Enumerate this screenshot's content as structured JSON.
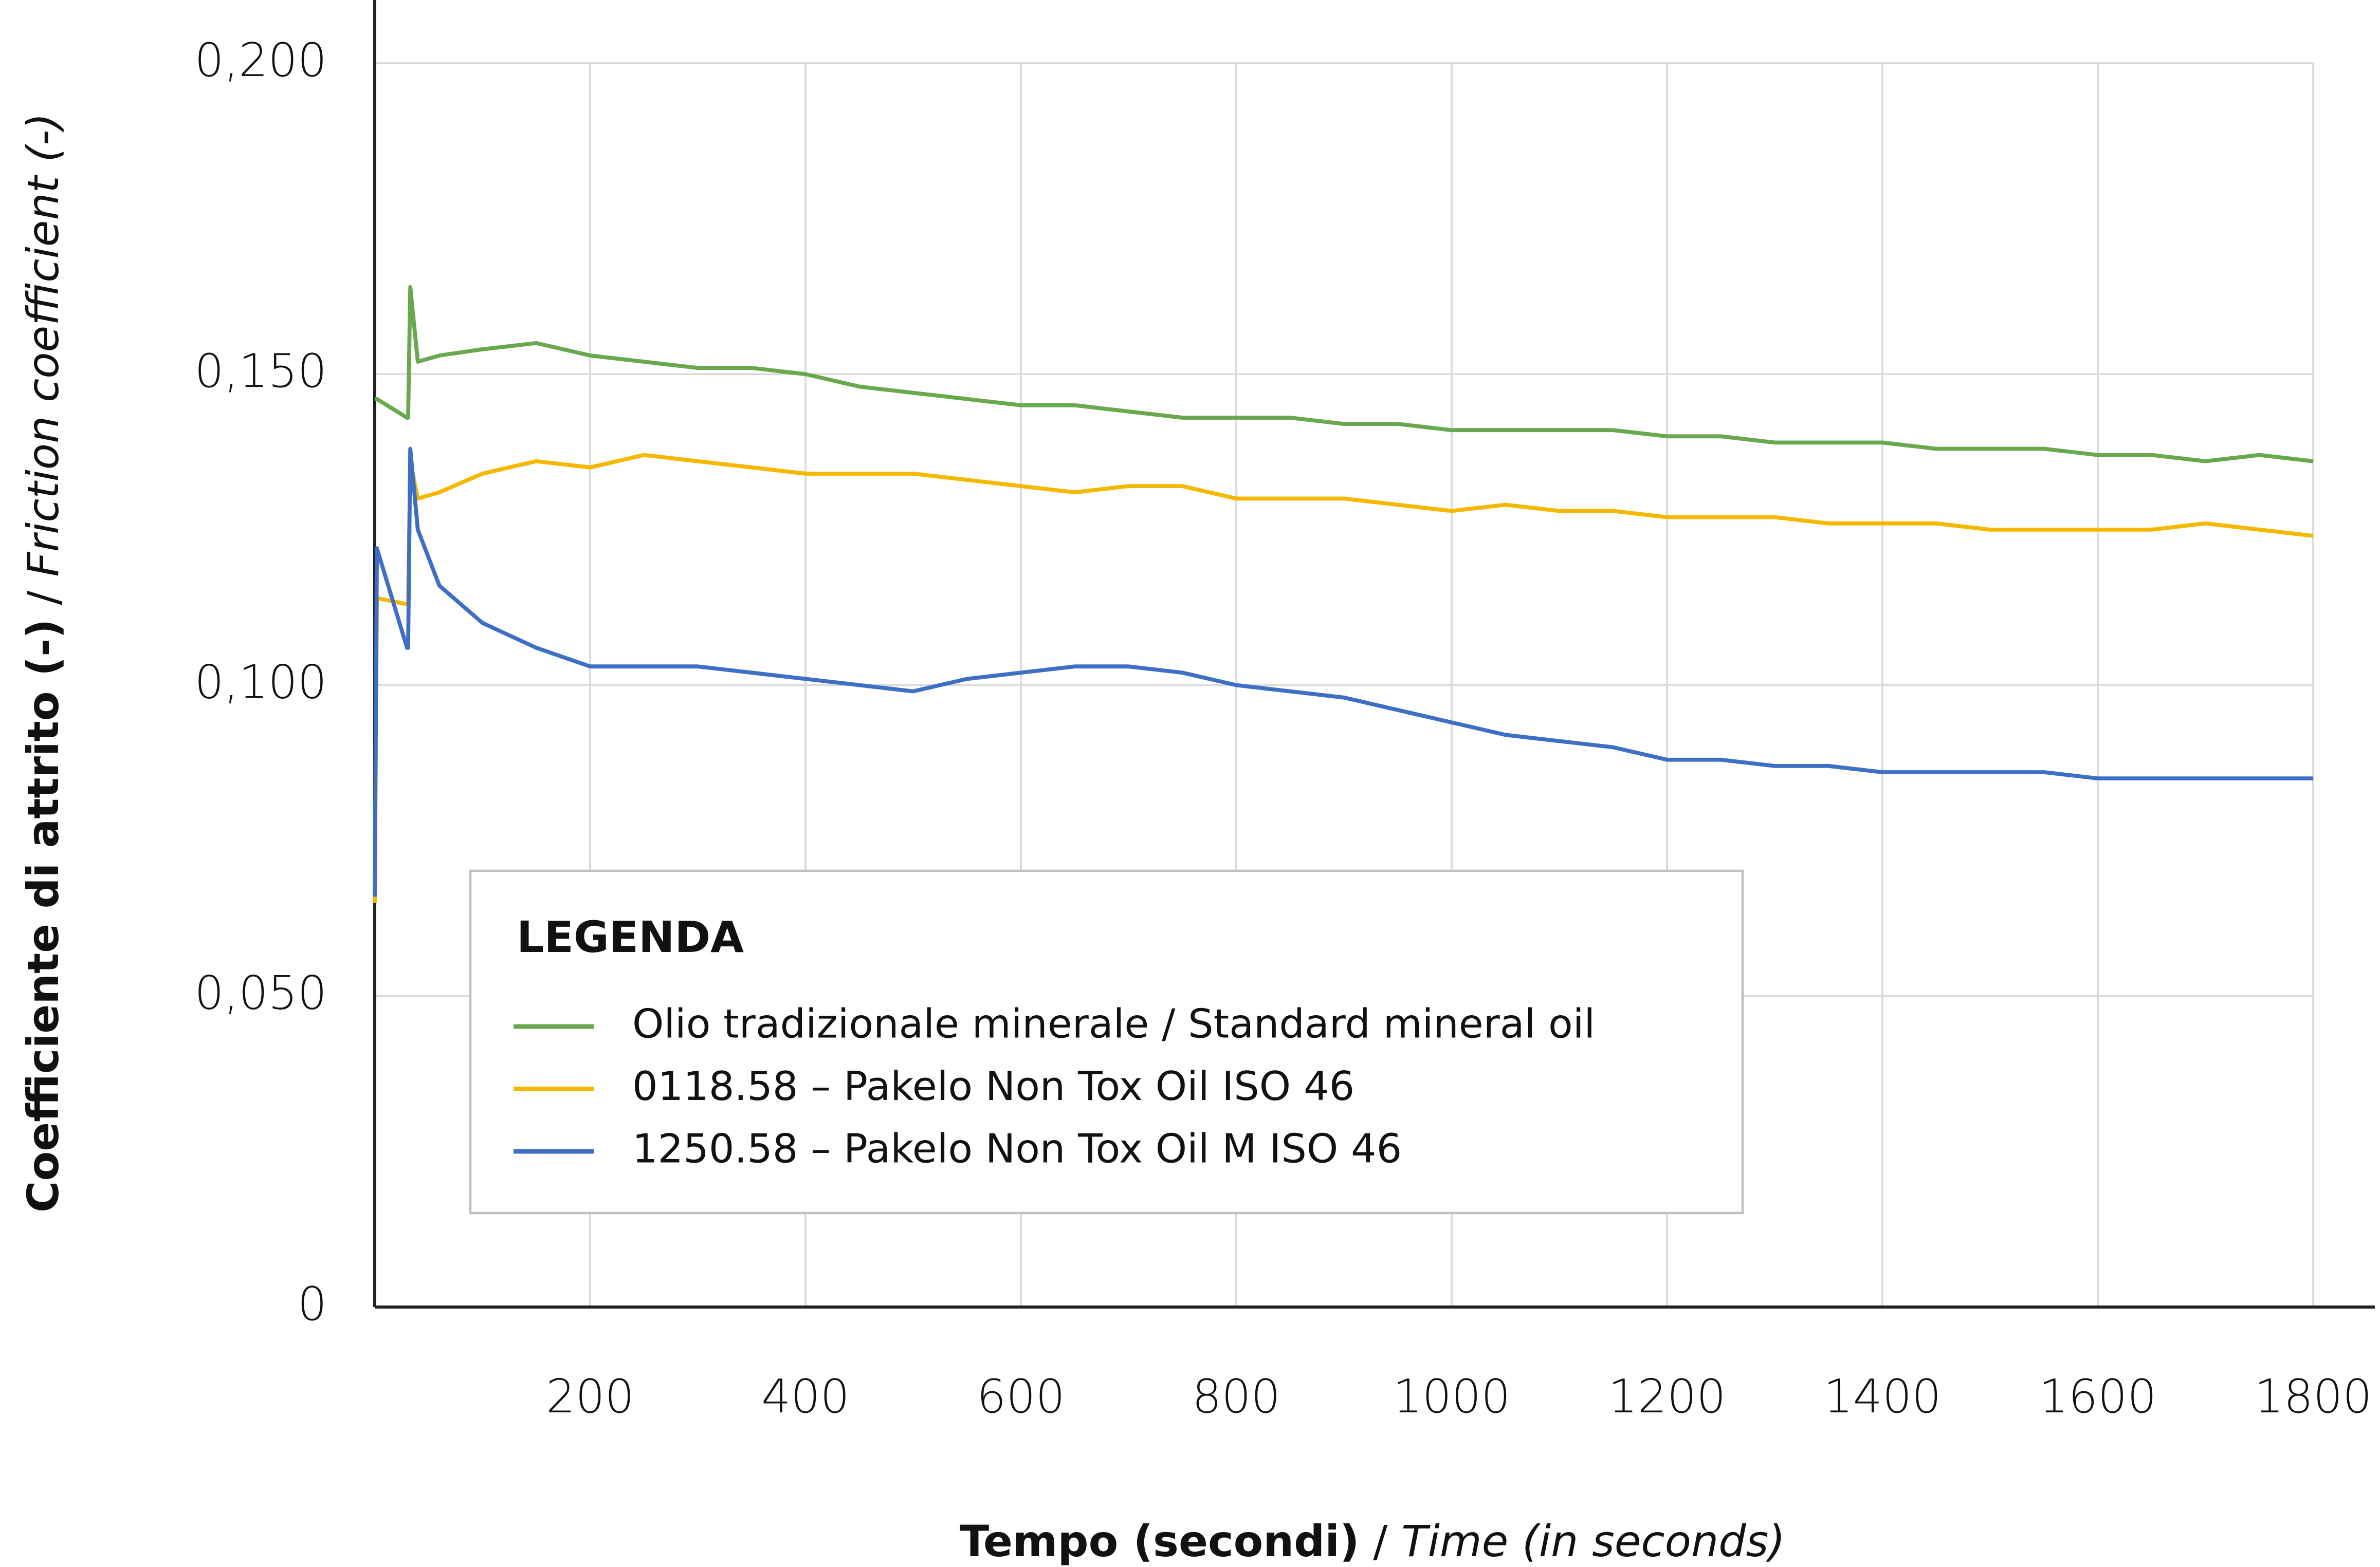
{
  "chart_data": {
    "type": "line",
    "xlabel": {
      "text": "Tempo (secondi)",
      "separator": "/",
      "translation": "Time (in seconds)"
    },
    "ylabel": {
      "text": "Coefficiente di attrito (-)",
      "separator": "/",
      "translation": "Friction coefficient (-)"
    },
    "legend_title": "LEGENDA",
    "legend": "lower left",
    "grid": true,
    "xlim": [
      0,
      1800
    ],
    "xticks": [
      200,
      400,
      600,
      800,
      1000,
      1200,
      1400,
      1600,
      1800
    ],
    "ylim": [
      0,
      0.2
    ],
    "yticks": [
      0,
      {
        "value": 0.05,
        "label": "0,050"
      },
      {
        "value": 0.1,
        "label": "0,100"
      },
      {
        "value": 0.15,
        "label": "0,150"
      },
      {
        "value": 0.2,
        "label": "0,200"
      }
    ],
    "x": [
      0,
      2,
      30,
      31,
      33,
      40,
      60,
      100,
      150,
      200,
      250,
      300,
      350,
      400,
      450,
      500,
      550,
      600,
      650,
      700,
      750,
      800,
      850,
      900,
      950,
      1000,
      1050,
      1100,
      1150,
      1200,
      1250,
      1300,
      1350,
      1400,
      1450,
      1500,
      1550,
      1600,
      1650,
      1700,
      1750,
      1800
    ],
    "series": [
      {
        "name": "Olio tradizionale minerale / Standard mineral oil",
        "color": "#6aa84f",
        "values": [
          0.146,
          0.146,
          0.143,
          0.143,
          0.164,
          0.152,
          0.153,
          0.154,
          0.155,
          0.153,
          0.152,
          0.151,
          0.151,
          0.15,
          0.148,
          0.147,
          0.146,
          0.145,
          0.145,
          0.144,
          0.143,
          0.143,
          0.143,
          0.142,
          0.142,
          0.141,
          0.141,
          0.141,
          0.141,
          0.14,
          0.14,
          0.139,
          0.139,
          0.139,
          0.138,
          0.138,
          0.138,
          0.137,
          0.137,
          0.136,
          0.137,
          0.136
        ]
      },
      {
        "name": "0118.58 – Pakelo Non Tox Oil ISO 46",
        "color": "#f5b800",
        "values": [
          0.065,
          0.114,
          0.113,
          0.113,
          0.136,
          0.13,
          0.131,
          0.134,
          0.136,
          0.135,
          0.137,
          0.136,
          0.135,
          0.134,
          0.134,
          0.134,
          0.133,
          0.132,
          0.131,
          0.132,
          0.132,
          0.13,
          0.13,
          0.13,
          0.129,
          0.128,
          0.129,
          0.128,
          0.128,
          0.127,
          0.127,
          0.127,
          0.126,
          0.126,
          0.126,
          0.125,
          0.125,
          0.125,
          0.125,
          0.126,
          0.125,
          0.124
        ]
      },
      {
        "name": "1250.58 – Pakelo Non Tox Oil M ISO 46",
        "color": "#3f6fc4",
        "values": [
          0.066,
          0.122,
          0.106,
          0.106,
          0.138,
          0.125,
          0.116,
          0.11,
          0.106,
          0.103,
          0.103,
          0.103,
          0.102,
          0.101,
          0.1,
          0.099,
          0.101,
          0.102,
          0.103,
          0.103,
          0.102,
          0.1,
          0.099,
          0.098,
          0.096,
          0.094,
          0.092,
          0.091,
          0.09,
          0.088,
          0.088,
          0.087,
          0.087,
          0.086,
          0.086,
          0.086,
          0.086,
          0.085,
          0.085,
          0.085,
          0.085,
          0.085
        ]
      }
    ]
  }
}
